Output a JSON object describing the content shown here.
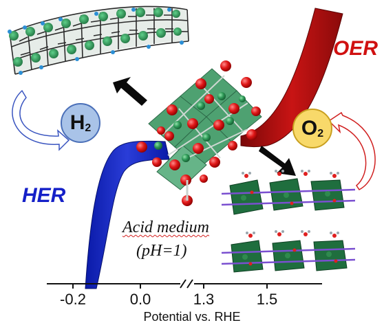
{
  "labels": {
    "oer": "OER",
    "her": "HER",
    "medium": "Acid medium",
    "ph": "(pH=1)"
  },
  "molecules": {
    "h2": {
      "symbol": "H",
      "subscript": "2"
    },
    "o2": {
      "symbol": "O",
      "subscript": "2"
    }
  },
  "axis": {
    "ticks": [
      "-0.2",
      "0.0",
      "1.3",
      "1.5"
    ],
    "label": "Potential vs. RHE",
    "break_marker": "//"
  },
  "colors": {
    "her_curve": "#1a2bc8",
    "oer_curve": "#b80f0f",
    "oer_text": "#d01010",
    "her_text": "#1520c8",
    "h2_badge": "#a9c3e8",
    "o2_badge": "#f8d96a",
    "oxygen_atom": "#e01818",
    "metal_atom": "#2f9a58"
  }
}
